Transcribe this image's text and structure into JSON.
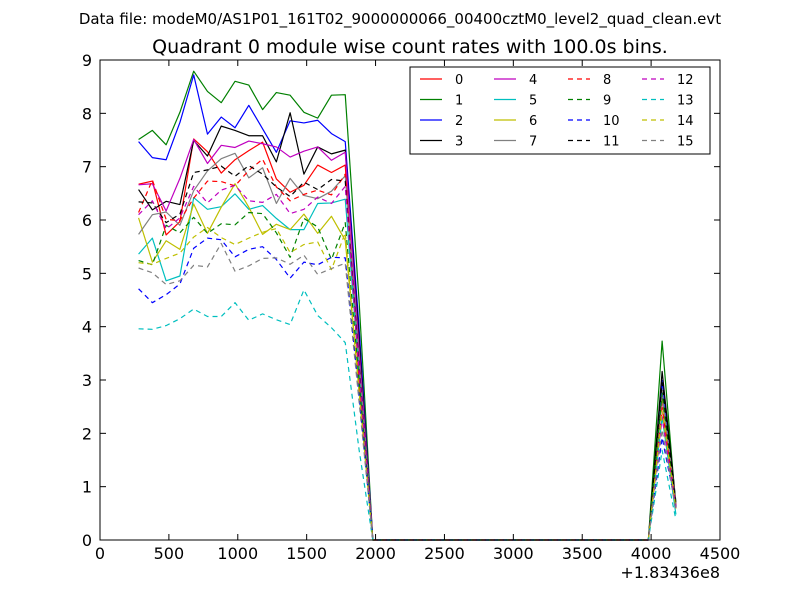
{
  "chart_data": {
    "type": "line",
    "suptitle": "Data file: modeM0/AS1P01_161T02_9000000066_00400cztM0_level2_quad_clean.evt",
    "title": "Quadrant 0 module wise count rates with 100.0s bins.",
    "xlabel": "",
    "ylabel": "",
    "x_offset_label": "+1.83436e8",
    "xlim": [
      0,
      4500
    ],
    "ylim": [
      0,
      9
    ],
    "xticks": [
      0,
      500,
      1000,
      1500,
      2000,
      2500,
      3000,
      3500,
      4000,
      4500
    ],
    "yticks": [
      0,
      1,
      2,
      3,
      4,
      5,
      6,
      7,
      8,
      9
    ],
    "grid": false,
    "legend_position": "top-right",
    "x": [
      280,
      380,
      480,
      580,
      680,
      780,
      880,
      980,
      1080,
      1180,
      1280,
      1380,
      1480,
      1580,
      1680,
      1780,
      1880,
      1980,
      2080,
      3980,
      4080,
      4180
    ],
    "series": [
      {
        "name": "0",
        "color": "#ff0000",
        "style": "solid",
        "values": [
          6.67,
          6.73,
          5.72,
          5.97,
          7.52,
          7.28,
          6.88,
          7.13,
          7.3,
          7.46,
          6.77,
          6.52,
          6.65,
          7.03,
          6.89,
          7.03,
          3.0,
          0.0,
          0.0,
          0.0,
          2.7,
          0.65
        ]
      },
      {
        "name": "1",
        "color": "#008000",
        "style": "solid",
        "values": [
          7.51,
          7.68,
          7.41,
          8.02,
          8.79,
          8.41,
          8.2,
          8.6,
          8.53,
          8.07,
          8.39,
          8.34,
          8.02,
          7.91,
          8.34,
          8.35,
          4.5,
          0.0,
          0.0,
          0.0,
          3.73,
          0.6
        ]
      },
      {
        "name": "2",
        "color": "#0000ff",
        "style": "solid",
        "values": [
          7.47,
          7.17,
          7.13,
          7.83,
          8.72,
          7.61,
          7.93,
          7.73,
          8.15,
          7.71,
          7.27,
          7.86,
          7.82,
          7.87,
          7.62,
          7.47,
          4.0,
          0.0,
          0.0,
          0.0,
          2.99,
          0.62
        ]
      },
      {
        "name": "3",
        "color": "#000000",
        "style": "solid",
        "values": [
          6.57,
          6.19,
          6.35,
          6.29,
          7.49,
          7.2,
          7.76,
          7.68,
          7.58,
          7.58,
          7.09,
          8.01,
          6.86,
          7.37,
          7.24,
          7.31,
          3.8,
          0.0,
          0.0,
          0.0,
          3.16,
          0.71
        ]
      },
      {
        "name": "4",
        "color": "#bf00bf",
        "style": "solid",
        "values": [
          6.66,
          6.68,
          6.17,
          6.78,
          7.51,
          7.06,
          7.4,
          7.36,
          7.48,
          7.43,
          7.37,
          7.18,
          7.29,
          7.37,
          7.12,
          7.27,
          3.6,
          0.0,
          0.0,
          0.0,
          2.63,
          0.66
        ]
      },
      {
        "name": "5",
        "color": "#00bfbf",
        "style": "solid",
        "values": [
          5.36,
          5.66,
          4.86,
          4.95,
          6.42,
          6.2,
          6.25,
          6.49,
          6.2,
          6.27,
          6.03,
          5.82,
          5.82,
          6.31,
          6.32,
          6.39,
          3.2,
          0.0,
          0.0,
          0.0,
          2.31,
          0.48
        ]
      },
      {
        "name": "6",
        "color": "#bfbf00",
        "style": "solid",
        "values": [
          6.04,
          5.21,
          5.61,
          5.45,
          6.3,
          5.75,
          6.24,
          6.68,
          6.24,
          5.73,
          5.92,
          5.82,
          6.11,
          5.75,
          6.07,
          5.62,
          2.8,
          0.0,
          0.0,
          0.0,
          2.69,
          0.6
        ]
      },
      {
        "name": "7",
        "color": "#808080",
        "style": "solid",
        "values": [
          5.73,
          6.1,
          6.15,
          5.9,
          6.55,
          6.92,
          7.15,
          7.25,
          6.79,
          6.98,
          6.31,
          6.78,
          6.46,
          6.4,
          6.54,
          6.83,
          3.4,
          0.0,
          0.0,
          0.0,
          2.76,
          0.69
        ]
      },
      {
        "name": "8",
        "color": "#ff0000",
        "style": "dashed",
        "values": [
          6.14,
          6.75,
          6.01,
          5.99,
          6.41,
          6.73,
          6.72,
          6.64,
          6.93,
          7.14,
          6.62,
          6.36,
          6.48,
          6.56,
          6.47,
          6.86,
          3.1,
          0.0,
          0.0,
          0.0,
          2.48,
          0.63
        ]
      },
      {
        "name": "9",
        "color": "#008000",
        "style": "dashed",
        "values": [
          5.24,
          5.16,
          5.9,
          5.76,
          6.05,
          5.75,
          5.93,
          5.91,
          6.14,
          6.12,
          5.76,
          5.3,
          6.03,
          5.87,
          5.26,
          5.95,
          3.0,
          0.0,
          0.0,
          0.0,
          2.75,
          0.61
        ]
      },
      {
        "name": "10",
        "color": "#0000ff",
        "style": "dashed",
        "values": [
          4.71,
          4.45,
          4.6,
          4.8,
          5.47,
          5.66,
          5.63,
          5.31,
          5.45,
          5.5,
          5.26,
          4.91,
          5.21,
          5.16,
          5.3,
          5.29,
          2.7,
          0.0,
          0.0,
          0.0,
          1.92,
          0.62
        ]
      },
      {
        "name": "11",
        "color": "#000000",
        "style": "dashed",
        "values": [
          6.34,
          6.32,
          5.95,
          6.11,
          6.89,
          6.94,
          7.01,
          6.82,
          7.02,
          6.86,
          6.62,
          6.44,
          6.71,
          6.57,
          6.76,
          6.73,
          3.3,
          0.0,
          0.0,
          0.0,
          2.95,
          0.66
        ]
      },
      {
        "name": "12",
        "color": "#bf00bf",
        "style": "dashed",
        "values": [
          6.1,
          6.36,
          5.83,
          6.04,
          6.63,
          6.32,
          6.56,
          6.65,
          6.36,
          6.33,
          6.48,
          6.12,
          6.2,
          6.43,
          6.31,
          6.63,
          3.2,
          0.0,
          0.0,
          0.0,
          2.3,
          0.58
        ]
      },
      {
        "name": "13",
        "color": "#00bfbf",
        "style": "dashed",
        "values": [
          3.96,
          3.95,
          4.02,
          4.15,
          4.33,
          4.19,
          4.19,
          4.45,
          4.12,
          4.24,
          4.13,
          4.04,
          4.69,
          4.21,
          3.98,
          3.7,
          1.7,
          0.0,
          0.0,
          0.0,
          1.68,
          0.38
        ]
      },
      {
        "name": "14",
        "color": "#bfbf00",
        "style": "dashed",
        "values": [
          5.2,
          5.17,
          5.28,
          5.38,
          5.68,
          5.86,
          5.67,
          5.54,
          5.66,
          5.77,
          5.84,
          5.39,
          5.54,
          5.59,
          5.07,
          5.76,
          2.8,
          0.0,
          0.0,
          0.0,
          2.42,
          0.59
        ]
      },
      {
        "name": "15",
        "color": "#808080",
        "style": "dashed",
        "values": [
          5.1,
          5.01,
          4.79,
          4.86,
          5.15,
          5.12,
          5.56,
          5.04,
          5.14,
          5.28,
          5.29,
          5.17,
          5.34,
          4.98,
          5.09,
          5.19,
          2.6,
          0.0,
          0.0,
          0.0,
          2.07,
          0.55
        ]
      }
    ]
  }
}
